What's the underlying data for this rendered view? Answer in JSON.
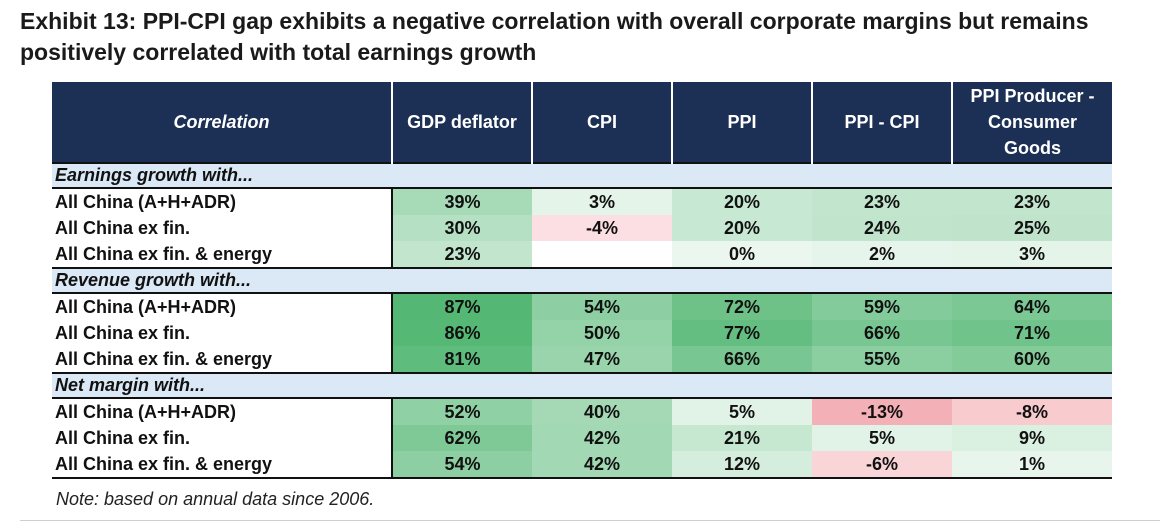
{
  "title": "Exhibit 13: PPI-CPI gap exhibits a negative correlation with overall corporate margins but remains positively correlated with total earnings growth",
  "note": "Note: based on annual data since 2006.",
  "colors": {
    "header_bg": "#1c2f55",
    "section_bg": "#dbe9f7",
    "positive": "#4fb56f",
    "negative": "#f3a6ad"
  },
  "chart_data": {
    "type": "table",
    "columns": [
      "Correlation",
      "GDP deflator",
      "CPI",
      "PPI",
      "PPI - CPI",
      "PPI Producer - Consumer Goods"
    ],
    "sections": [
      {
        "title": "Earnings growth with...",
        "rows": [
          {
            "label": "All China (A+H+ADR)",
            "values": [
              "39%",
              "3%",
              "20%",
              "23%",
              "23%"
            ]
          },
          {
            "label": "All China ex fin.",
            "values": [
              "30%",
              "-4%",
              "20%",
              "24%",
              "25%"
            ]
          },
          {
            "label": "All China ex fin. & energy",
            "values": [
              "23%",
              "",
              "0%",
              "2%",
              "3%"
            ]
          }
        ]
      },
      {
        "title": "Revenue growth with...",
        "rows": [
          {
            "label": "All China (A+H+ADR)",
            "values": [
              "87%",
              "54%",
              "72%",
              "59%",
              "64%"
            ]
          },
          {
            "label": "All China ex fin.",
            "values": [
              "86%",
              "50%",
              "77%",
              "66%",
              "71%"
            ]
          },
          {
            "label": "All China ex fin. & energy",
            "values": [
              "81%",
              "47%",
              "66%",
              "55%",
              "60%"
            ]
          }
        ]
      },
      {
        "title": "Net margin with...",
        "rows": [
          {
            "label": "All China (A+H+ADR)",
            "values": [
              "52%",
              "40%",
              "5%",
              "-13%",
              "-8%"
            ]
          },
          {
            "label": "All China ex fin.",
            "values": [
              "62%",
              "42%",
              "21%",
              "5%",
              "9%"
            ]
          },
          {
            "label": "All China ex fin. & energy",
            "values": [
              "54%",
              "42%",
              "12%",
              "-6%",
              "1%"
            ]
          }
        ]
      }
    ]
  }
}
